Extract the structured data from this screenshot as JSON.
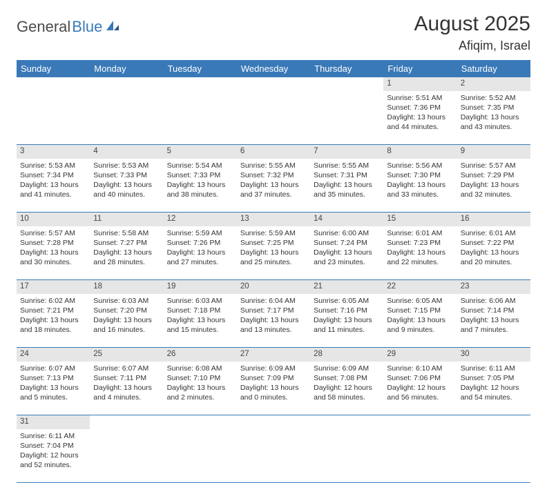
{
  "brand": {
    "general": "General",
    "blue": "Blue"
  },
  "title": "August 2025",
  "location": "Afiqim, Israel",
  "colors": {
    "header_bg": "#3a79b7",
    "daynum_bg": "#e6e6e6",
    "text": "#333333"
  },
  "day_headers": [
    "Sunday",
    "Monday",
    "Tuesday",
    "Wednesday",
    "Thursday",
    "Friday",
    "Saturday"
  ],
  "weeks": [
    [
      null,
      null,
      null,
      null,
      null,
      {
        "n": "1",
        "sr": "Sunrise: 5:51 AM",
        "ss": "Sunset: 7:36 PM",
        "dl1": "Daylight: 13 hours",
        "dl2": "and 44 minutes."
      },
      {
        "n": "2",
        "sr": "Sunrise: 5:52 AM",
        "ss": "Sunset: 7:35 PM",
        "dl1": "Daylight: 13 hours",
        "dl2": "and 43 minutes."
      }
    ],
    [
      {
        "n": "3",
        "sr": "Sunrise: 5:53 AM",
        "ss": "Sunset: 7:34 PM",
        "dl1": "Daylight: 13 hours",
        "dl2": "and 41 minutes."
      },
      {
        "n": "4",
        "sr": "Sunrise: 5:53 AM",
        "ss": "Sunset: 7:33 PM",
        "dl1": "Daylight: 13 hours",
        "dl2": "and 40 minutes."
      },
      {
        "n": "5",
        "sr": "Sunrise: 5:54 AM",
        "ss": "Sunset: 7:33 PM",
        "dl1": "Daylight: 13 hours",
        "dl2": "and 38 minutes."
      },
      {
        "n": "6",
        "sr": "Sunrise: 5:55 AM",
        "ss": "Sunset: 7:32 PM",
        "dl1": "Daylight: 13 hours",
        "dl2": "and 37 minutes."
      },
      {
        "n": "7",
        "sr": "Sunrise: 5:55 AM",
        "ss": "Sunset: 7:31 PM",
        "dl1": "Daylight: 13 hours",
        "dl2": "and 35 minutes."
      },
      {
        "n": "8",
        "sr": "Sunrise: 5:56 AM",
        "ss": "Sunset: 7:30 PM",
        "dl1": "Daylight: 13 hours",
        "dl2": "and 33 minutes."
      },
      {
        "n": "9",
        "sr": "Sunrise: 5:57 AM",
        "ss": "Sunset: 7:29 PM",
        "dl1": "Daylight: 13 hours",
        "dl2": "and 32 minutes."
      }
    ],
    [
      {
        "n": "10",
        "sr": "Sunrise: 5:57 AM",
        "ss": "Sunset: 7:28 PM",
        "dl1": "Daylight: 13 hours",
        "dl2": "and 30 minutes."
      },
      {
        "n": "11",
        "sr": "Sunrise: 5:58 AM",
        "ss": "Sunset: 7:27 PM",
        "dl1": "Daylight: 13 hours",
        "dl2": "and 28 minutes."
      },
      {
        "n": "12",
        "sr": "Sunrise: 5:59 AM",
        "ss": "Sunset: 7:26 PM",
        "dl1": "Daylight: 13 hours",
        "dl2": "and 27 minutes."
      },
      {
        "n": "13",
        "sr": "Sunrise: 5:59 AM",
        "ss": "Sunset: 7:25 PM",
        "dl1": "Daylight: 13 hours",
        "dl2": "and 25 minutes."
      },
      {
        "n": "14",
        "sr": "Sunrise: 6:00 AM",
        "ss": "Sunset: 7:24 PM",
        "dl1": "Daylight: 13 hours",
        "dl2": "and 23 minutes."
      },
      {
        "n": "15",
        "sr": "Sunrise: 6:01 AM",
        "ss": "Sunset: 7:23 PM",
        "dl1": "Daylight: 13 hours",
        "dl2": "and 22 minutes."
      },
      {
        "n": "16",
        "sr": "Sunrise: 6:01 AM",
        "ss": "Sunset: 7:22 PM",
        "dl1": "Daylight: 13 hours",
        "dl2": "and 20 minutes."
      }
    ],
    [
      {
        "n": "17",
        "sr": "Sunrise: 6:02 AM",
        "ss": "Sunset: 7:21 PM",
        "dl1": "Daylight: 13 hours",
        "dl2": "and 18 minutes."
      },
      {
        "n": "18",
        "sr": "Sunrise: 6:03 AM",
        "ss": "Sunset: 7:20 PM",
        "dl1": "Daylight: 13 hours",
        "dl2": "and 16 minutes."
      },
      {
        "n": "19",
        "sr": "Sunrise: 6:03 AM",
        "ss": "Sunset: 7:18 PM",
        "dl1": "Daylight: 13 hours",
        "dl2": "and 15 minutes."
      },
      {
        "n": "20",
        "sr": "Sunrise: 6:04 AM",
        "ss": "Sunset: 7:17 PM",
        "dl1": "Daylight: 13 hours",
        "dl2": "and 13 minutes."
      },
      {
        "n": "21",
        "sr": "Sunrise: 6:05 AM",
        "ss": "Sunset: 7:16 PM",
        "dl1": "Daylight: 13 hours",
        "dl2": "and 11 minutes."
      },
      {
        "n": "22",
        "sr": "Sunrise: 6:05 AM",
        "ss": "Sunset: 7:15 PM",
        "dl1": "Daylight: 13 hours",
        "dl2": "and 9 minutes."
      },
      {
        "n": "23",
        "sr": "Sunrise: 6:06 AM",
        "ss": "Sunset: 7:14 PM",
        "dl1": "Daylight: 13 hours",
        "dl2": "and 7 minutes."
      }
    ],
    [
      {
        "n": "24",
        "sr": "Sunrise: 6:07 AM",
        "ss": "Sunset: 7:13 PM",
        "dl1": "Daylight: 13 hours",
        "dl2": "and 5 minutes."
      },
      {
        "n": "25",
        "sr": "Sunrise: 6:07 AM",
        "ss": "Sunset: 7:11 PM",
        "dl1": "Daylight: 13 hours",
        "dl2": "and 4 minutes."
      },
      {
        "n": "26",
        "sr": "Sunrise: 6:08 AM",
        "ss": "Sunset: 7:10 PM",
        "dl1": "Daylight: 13 hours",
        "dl2": "and 2 minutes."
      },
      {
        "n": "27",
        "sr": "Sunrise: 6:09 AM",
        "ss": "Sunset: 7:09 PM",
        "dl1": "Daylight: 13 hours",
        "dl2": "and 0 minutes."
      },
      {
        "n": "28",
        "sr": "Sunrise: 6:09 AM",
        "ss": "Sunset: 7:08 PM",
        "dl1": "Daylight: 12 hours",
        "dl2": "and 58 minutes."
      },
      {
        "n": "29",
        "sr": "Sunrise: 6:10 AM",
        "ss": "Sunset: 7:06 PM",
        "dl1": "Daylight: 12 hours",
        "dl2": "and 56 minutes."
      },
      {
        "n": "30",
        "sr": "Sunrise: 6:11 AM",
        "ss": "Sunset: 7:05 PM",
        "dl1": "Daylight: 12 hours",
        "dl2": "and 54 minutes."
      }
    ],
    [
      {
        "n": "31",
        "sr": "Sunrise: 6:11 AM",
        "ss": "Sunset: 7:04 PM",
        "dl1": "Daylight: 12 hours",
        "dl2": "and 52 minutes."
      },
      null,
      null,
      null,
      null,
      null,
      null
    ]
  ]
}
